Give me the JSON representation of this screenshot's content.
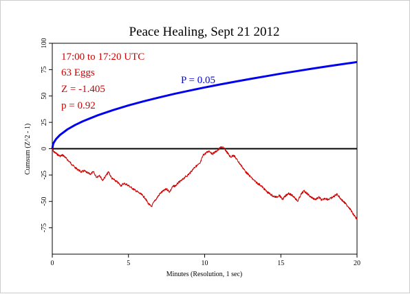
{
  "chart_data": {
    "type": "line",
    "title": "Peace Healing, Sept 21 2012",
    "xlabel": "Minutes (Resolution, 1 sec)",
    "ylabel": "Cumsum (Z^2 - 1)",
    "xlim": [
      0,
      20
    ],
    "ylim": [
      -100,
      100
    ],
    "x_ticks": [
      "0",
      "5",
      "10",
      "15",
      "20"
    ],
    "y_ticks": [
      "100",
      "75",
      "50",
      "25",
      "0",
      "-25",
      "-50",
      "-75"
    ],
    "annotations": {
      "time_range": "17:00 to 17:20 UTC",
      "eggs": "63 Eggs",
      "z": "Z = -1.405",
      "p": "p = 0.92",
      "envelope_label": "P = 0.05"
    },
    "colors": {
      "cumsum": "#cc0000",
      "envelope": "#0000ee",
      "baseline": "#000000",
      "annotation_text": "#cc0000"
    },
    "series": [
      {
        "role": "cumulative deviation",
        "x": [
          0,
          0.1,
          0.3,
          0.5,
          0.7,
          0.9,
          1.1,
          1.3,
          1.5,
          1.7,
          1.9,
          2.1,
          2.3,
          2.5,
          2.7,
          2.9,
          3.1,
          3.3,
          3.5,
          3.7,
          3.9,
          4.1,
          4.3,
          4.5,
          4.7,
          4.9,
          5.1,
          5.3,
          5.5,
          5.7,
          5.9,
          6.1,
          6.3,
          6.5,
          6.7,
          6.9,
          7.1,
          7.3,
          7.5,
          7.7,
          7.9,
          8.1,
          8.3,
          8.5,
          8.7,
          8.9,
          9.1,
          9.3,
          9.5,
          9.7,
          9.9,
          10.1,
          10.3,
          10.5,
          10.7,
          10.9,
          11.1,
          11.3,
          11.5,
          11.7,
          11.9,
          12.1,
          12.3,
          12.5,
          12.7,
          12.9,
          13.1,
          13.3,
          13.5,
          13.7,
          13.9,
          14.1,
          14.3,
          14.5,
          14.7,
          14.9,
          15.1,
          15.3,
          15.5,
          15.7,
          15.9,
          16.1,
          16.3,
          16.5,
          16.7,
          16.9,
          17.1,
          17.3,
          17.5,
          17.7,
          17.9,
          18.1,
          18.3,
          18.5,
          18.7,
          18.9,
          19.1,
          19.3,
          19.5,
          19.7,
          19.9,
          20
        ],
        "values": [
          0,
          -3,
          -5,
          -7,
          -6,
          -9,
          -12,
          -15,
          -18,
          -20,
          -22,
          -21,
          -23,
          -24,
          -22,
          -27,
          -25,
          -30,
          -26,
          -22,
          -28,
          -30,
          -32,
          -35,
          -33,
          -34,
          -36,
          -38,
          -40,
          -42,
          -44,
          -47,
          -52,
          -55,
          -50,
          -46,
          -42,
          -40,
          -38,
          -41,
          -36,
          -35,
          -32,
          -30,
          -27,
          -25,
          -22,
          -18,
          -16,
          -14,
          -6,
          -4,
          -2,
          -5,
          -3,
          -1,
          2,
          0,
          -4,
          -8,
          -6,
          -10,
          -14,
          -18,
          -22,
          -25,
          -28,
          -31,
          -33,
          -35,
          -38,
          -41,
          -43,
          -45,
          -46,
          -44,
          -48,
          -45,
          -42,
          -44,
          -46,
          -50,
          -44,
          -40,
          -42,
          -45,
          -47,
          -48,
          -46,
          -49,
          -47,
          -48,
          -47,
          -45,
          -43,
          -47,
          -50,
          -53,
          -56,
          -61,
          -65,
          -67
        ]
      },
      {
        "role": "P = 0.05 envelope",
        "x": [
          0,
          0.05,
          0.1,
          0.25,
          0.5,
          1,
          1.5,
          2,
          3,
          4,
          5,
          6,
          7,
          8,
          9,
          10,
          11,
          12,
          13,
          14,
          15,
          16,
          17,
          18,
          19,
          20
        ],
        "values": [
          0,
          4.1,
          5.8,
          9.2,
          13,
          18.4,
          22.5,
          26,
          31.8,
          36.7,
          41.1,
          45,
          48.6,
          52,
          55.1,
          58.1,
          60.9,
          63.6,
          66.2,
          68.7,
          71.2,
          73.5,
          75.8,
          78,
          80.1,
          82.2
        ]
      }
    ]
  }
}
